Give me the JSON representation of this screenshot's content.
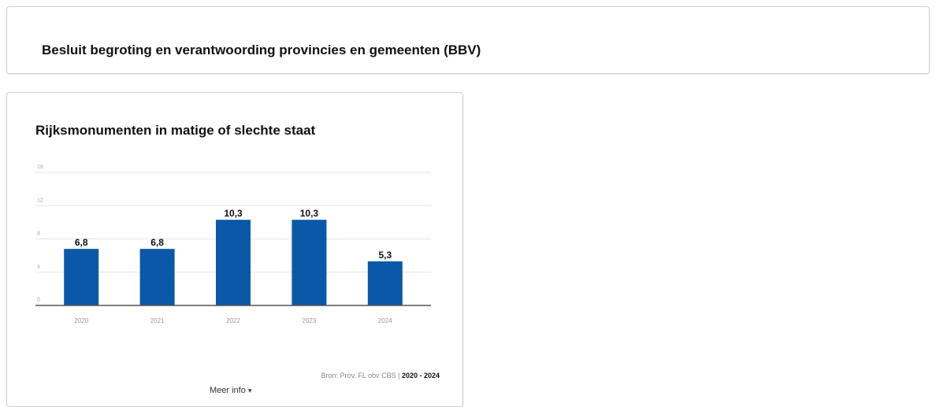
{
  "header": {
    "title": "Besluit begroting en verantwoording provincies en gemeenten (BBV)"
  },
  "card": {
    "source_prefix": "Bron: Prov. FL obv CBS |",
    "year_start": "2020",
    "year_sep": " - ",
    "year_end": "2024",
    "meer_info": "Meer info",
    "caret_icon": "▾"
  },
  "colors": {
    "bar": "#0a58a8",
    "grid": "#e6e6e6",
    "axis": "#555555"
  },
  "chart_data": {
    "type": "bar",
    "title": "Rijksmonumenten in matige of slechte staat",
    "categories": [
      "2020",
      "2021",
      "2022",
      "2023",
      "2024"
    ],
    "values": [
      6.8,
      6.8,
      10.3,
      10.3,
      5.3
    ],
    "data_labels": [
      "6,8",
      "6,8",
      "10,3",
      "10,3",
      "5,3"
    ],
    "ylim": [
      0,
      16
    ],
    "yticks": [
      "0",
      "4",
      "8",
      "12",
      "16"
    ],
    "grid": true,
    "xlabel": "",
    "ylabel": ""
  }
}
